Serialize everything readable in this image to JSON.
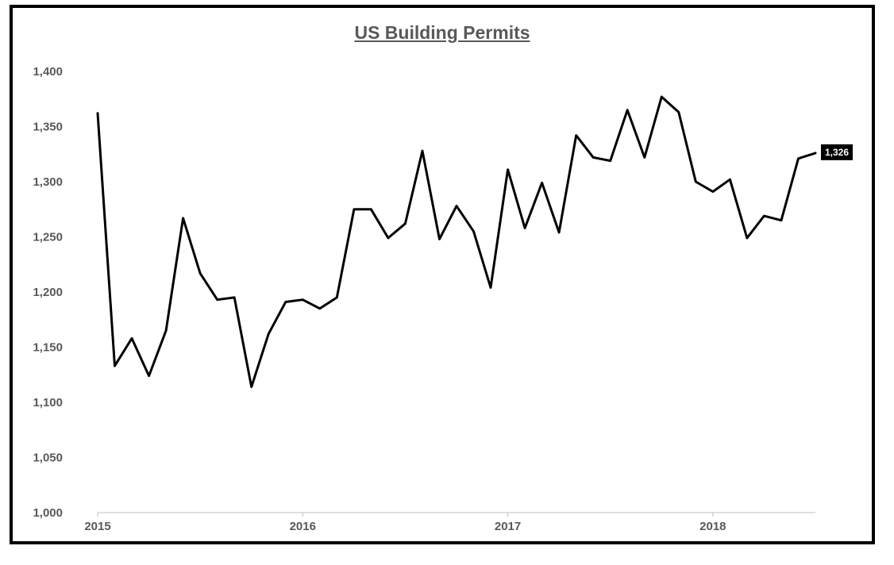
{
  "chart_data": {
    "type": "line",
    "title": "US Building Permits",
    "xlabel": "",
    "ylabel": "",
    "ylim": [
      1000,
      1400
    ],
    "yticks": [
      1000,
      1050,
      1100,
      1150,
      1200,
      1250,
      1300,
      1350,
      1400
    ],
    "ytick_labels": [
      "1,000",
      "1,050",
      "1,100",
      "1,150",
      "1,200",
      "1,250",
      "1,300",
      "1,350",
      "1,400"
    ],
    "xticks": [
      2015,
      2016,
      2017,
      2018
    ],
    "xtick_labels": [
      "2015",
      "2016",
      "2017",
      "2018"
    ],
    "grid": false,
    "series": [
      {
        "color": "#000000",
        "x": [
          "2015-01",
          "2015-02",
          "2015-03",
          "2015-04",
          "2015-05",
          "2015-06",
          "2015-07",
          "2015-08",
          "2015-09",
          "2015-10",
          "2015-11",
          "2015-12",
          "2016-01",
          "2016-02",
          "2016-03",
          "2016-04",
          "2016-05",
          "2016-06",
          "2016-07",
          "2016-08",
          "2016-09",
          "2016-10",
          "2016-11",
          "2016-12",
          "2017-01",
          "2017-02",
          "2017-03",
          "2017-04",
          "2017-05",
          "2017-06",
          "2017-07",
          "2017-08",
          "2017-09",
          "2017-10",
          "2017-11",
          "2017-12",
          "2018-01",
          "2018-02",
          "2018-03",
          "2018-04",
          "2018-05",
          "2018-06",
          "2018-07"
        ],
        "values": [
          1362,
          1133,
          1158,
          1124,
          1165,
          1267,
          1217,
          1193,
          1195,
          1114,
          1162,
          1191,
          1193,
          1185,
          1195,
          1275,
          1275,
          1249,
          1262,
          1328,
          1248,
          1278,
          1255,
          1204,
          1311,
          1258,
          1299,
          1254,
          1342,
          1322,
          1319,
          1365,
          1322,
          1377,
          1363,
          1300,
          1291,
          1302,
          1249,
          1269,
          1265,
          1321,
          1326
        ]
      }
    ],
    "end_label": "1,326",
    "end_label_background": "#000000"
  }
}
